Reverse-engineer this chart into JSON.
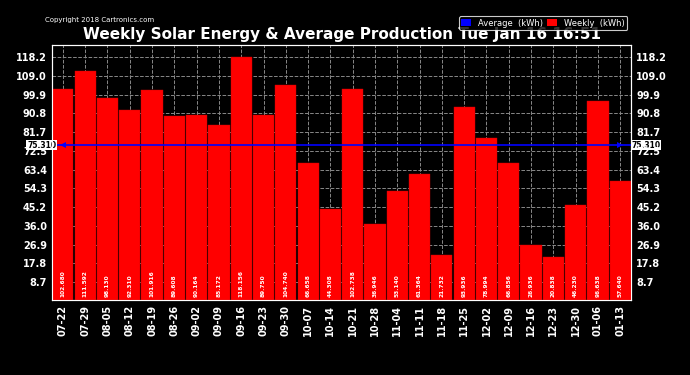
{
  "title": "Weekly Solar Energy & Average Production Tue Jan 16 16:51",
  "copyright": "Copyright 2018 Cartronics.com",
  "categories": [
    "07-22",
    "07-29",
    "08-05",
    "08-12",
    "08-19",
    "08-26",
    "09-02",
    "09-09",
    "09-16",
    "09-23",
    "09-30",
    "10-07",
    "10-14",
    "10-21",
    "10-28",
    "11-04",
    "11-11",
    "11-18",
    "11-25",
    "12-02",
    "12-09",
    "12-16",
    "12-23",
    "12-30",
    "01-06",
    "01-13"
  ],
  "values": [
    102.68,
    111.592,
    98.13,
    92.31,
    101.916,
    89.608,
    90.164,
    85.172,
    118.156,
    89.75,
    104.74,
    66.658,
    44.308,
    102.738,
    36.946,
    53.14,
    61.364,
    21.732,
    93.936,
    78.994,
    66.856,
    26.936,
    20.838,
    46.23,
    96.638,
    57.64
  ],
  "bar_labels": [
    "102.680",
    "111.592",
    "98.130",
    "92.310",
    "101.916",
    "89.608",
    "90.164",
    "85.172",
    "118.156",
    "89.750",
    "104.740",
    "66.658",
    "44.308",
    "102.738",
    "36.946",
    "53.140",
    "61.364",
    "21.732",
    "93.936",
    "78.994",
    "66.856",
    "26.936",
    "20.838",
    "46.230",
    "96.638",
    "57.640"
  ],
  "average": 75.31,
  "average_label": "75.310",
  "bar_color": "#FF0000",
  "bar_edge_color": "#CC0000",
  "average_line_color": "#0000FF",
  "background_color": "#000000",
  "plot_bg_color": "#000000",
  "grid_color": "#888888",
  "yticks": [
    8.7,
    17.8,
    26.9,
    36.0,
    45.2,
    54.3,
    63.4,
    72.5,
    81.7,
    90.8,
    99.9,
    109.0,
    118.2
  ],
  "ymin": 0,
  "ymax": 124,
  "title_fontsize": 11,
  "tick_fontsize": 7,
  "legend_avg_label": "Average  (kWh)",
  "legend_weekly_label": "Weekly  (kWh)"
}
